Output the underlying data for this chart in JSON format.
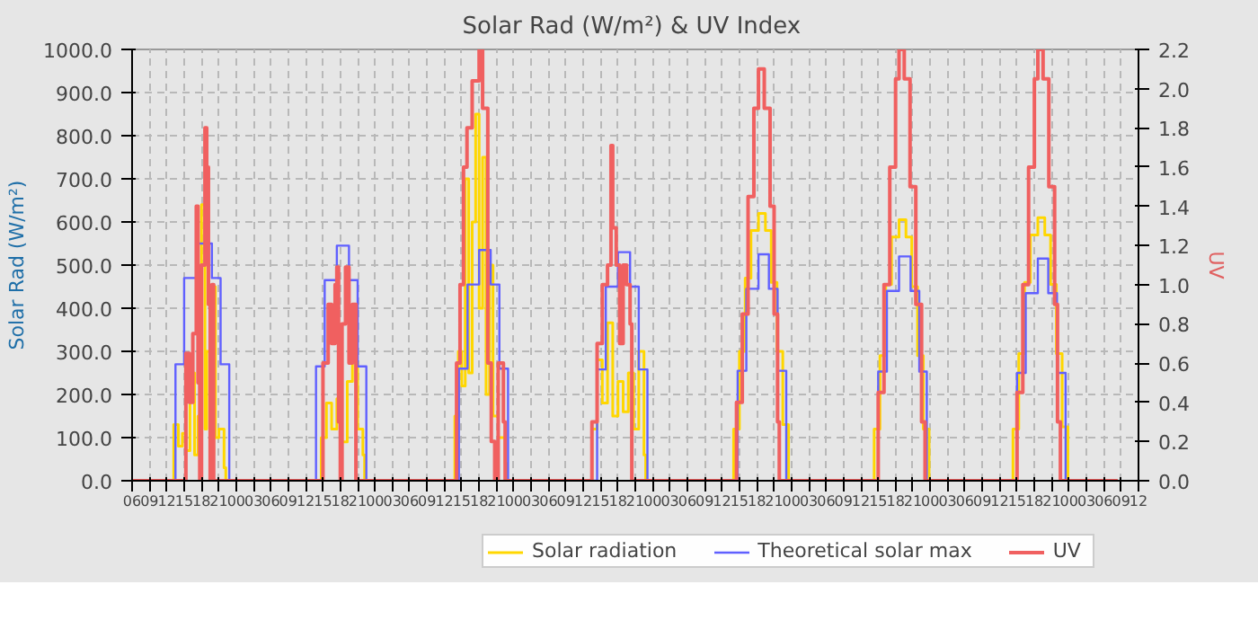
{
  "chart_data": {
    "type": "step",
    "title": "Solar Rad (W/m²) &  UV Index",
    "ylabel": "Solar Rad (W/m²)",
    "y2label": "UV",
    "xlim": [
      6,
      180
    ],
    "ylim": [
      0,
      1000
    ],
    "y2lim": [
      0,
      2.2
    ],
    "xticks": [
      {
        "value": 6,
        "label": "06"
      },
      {
        "value": 9,
        "label": "09"
      },
      {
        "value": 12,
        "label": "12"
      },
      {
        "value": 15,
        "label": "15"
      },
      {
        "value": 18,
        "label": "18"
      },
      {
        "value": 21,
        "label": "21"
      },
      {
        "value": 24,
        "label": "00"
      },
      {
        "value": 27,
        "label": "03"
      },
      {
        "value": 30,
        "label": "06"
      },
      {
        "value": 33,
        "label": "09"
      },
      {
        "value": 36,
        "label": "12"
      },
      {
        "value": 39,
        "label": "15"
      },
      {
        "value": 42,
        "label": "18"
      },
      {
        "value": 45,
        "label": "21"
      },
      {
        "value": 48,
        "label": "00"
      },
      {
        "value": 51,
        "label": "03"
      },
      {
        "value": 54,
        "label": "06"
      },
      {
        "value": 57,
        "label": "09"
      },
      {
        "value": 60,
        "label": "12"
      },
      {
        "value": 63,
        "label": "15"
      },
      {
        "value": 66,
        "label": "18"
      },
      {
        "value": 69,
        "label": "21"
      },
      {
        "value": 72,
        "label": "00"
      },
      {
        "value": 75,
        "label": "03"
      },
      {
        "value": 78,
        "label": "06"
      },
      {
        "value": 81,
        "label": "09"
      },
      {
        "value": 84,
        "label": "12"
      },
      {
        "value": 87,
        "label": "15"
      },
      {
        "value": 90,
        "label": "18"
      },
      {
        "value": 93,
        "label": "21"
      },
      {
        "value": 96,
        "label": "00"
      },
      {
        "value": 99,
        "label": "03"
      },
      {
        "value": 102,
        "label": "06"
      },
      {
        "value": 105,
        "label": "09"
      },
      {
        "value": 108,
        "label": "12"
      },
      {
        "value": 111,
        "label": "15"
      },
      {
        "value": 114,
        "label": "18"
      },
      {
        "value": 117,
        "label": "21"
      },
      {
        "value": 120,
        "label": "00"
      },
      {
        "value": 123,
        "label": "03"
      },
      {
        "value": 126,
        "label": "06"
      },
      {
        "value": 129,
        "label": "09"
      },
      {
        "value": 132,
        "label": "12"
      },
      {
        "value": 135,
        "label": "15"
      },
      {
        "value": 138,
        "label": "18"
      },
      {
        "value": 141,
        "label": "21"
      },
      {
        "value": 144,
        "label": "00"
      },
      {
        "value": 147,
        "label": "03"
      },
      {
        "value": 150,
        "label": "06"
      },
      {
        "value": 153,
        "label": "09"
      },
      {
        "value": 156,
        "label": "12"
      },
      {
        "value": 159,
        "label": "15"
      },
      {
        "value": 162,
        "label": "18"
      },
      {
        "value": 165,
        "label": "21"
      },
      {
        "value": 168,
        "label": "00"
      },
      {
        "value": 171,
        "label": "03"
      },
      {
        "value": 174,
        "label": "06"
      },
      {
        "value": 177,
        "label": "09"
      },
      {
        "value": 180,
        "label": "12"
      }
    ],
    "yticks": [
      {
        "value": 0,
        "label": "0.0"
      },
      {
        "value": 100,
        "label": "100.0"
      },
      {
        "value": 200,
        "label": "200.0"
      },
      {
        "value": 300,
        "label": "300.0"
      },
      {
        "value": 400,
        "label": "400.0"
      },
      {
        "value": 500,
        "label": "500.0"
      },
      {
        "value": 600,
        "label": "600.0"
      },
      {
        "value": 700,
        "label": "700.0"
      },
      {
        "value": 800,
        "label": "800.0"
      },
      {
        "value": 900,
        "label": "900.0"
      },
      {
        "value": 1000,
        "label": "1000.0"
      }
    ],
    "y2ticks": [
      {
        "value": 0,
        "label": "0.0"
      },
      {
        "value": 0.2,
        "label": "0.2"
      },
      {
        "value": 0.4,
        "label": "0.4"
      },
      {
        "value": 0.6,
        "label": "0.6"
      },
      {
        "value": 0.8,
        "label": "0.8"
      },
      {
        "value": 1.0,
        "label": "1.0"
      },
      {
        "value": 1.2,
        "label": "1.2"
      },
      {
        "value": 1.4,
        "label": "1.4"
      },
      {
        "value": 1.6,
        "label": "1.6"
      },
      {
        "value": 1.8,
        "label": "1.8"
      },
      {
        "value": 2.0,
        "label": "2.0"
      },
      {
        "value": 2.2,
        "label": "2.2"
      }
    ],
    "grid": true,
    "legend": "bottom",
    "series": [
      {
        "name": "Solar radiation",
        "color": "#ffd700",
        "x": [
          6,
          12.6,
          13.2,
          14,
          14.7,
          15.3,
          16,
          16.8,
          17.4,
          18,
          18.6,
          18.9,
          19.5,
          20.1,
          20.4,
          21,
          21.9,
          22.2,
          38.1,
          38.7,
          39.6,
          40.5,
          41.4,
          42.3,
          43.2,
          44.1,
          45,
          45.9,
          46.2,
          61.2,
          61.8,
          62.4,
          63,
          63.6,
          64.2,
          64.8,
          65.4,
          66,
          66.6,
          67.2,
          67.8,
          68.4,
          69.3,
          70.5,
          70.8,
          84.6,
          85.5,
          86.4,
          87.3,
          88.2,
          89.1,
          90,
          90.9,
          91.8,
          92.7,
          93.6,
          94.5,
          94.8,
          109,
          110,
          111,
          112,
          113,
          114.3,
          115.5,
          116.5,
          117.5,
          118.5,
          119.5,
          133.3,
          134.3,
          135.3,
          136.3,
          137.3,
          138.6,
          139.8,
          140.8,
          141.8,
          142.8,
          143.8,
          157.3,
          158.3,
          159.3,
          160.3,
          161.3,
          162.6,
          163.8,
          164.8,
          165.8,
          166.8,
          167.8,
          176.4
        ],
        "values": [
          0,
          0,
          130,
          80,
          110,
          70,
          250,
          60,
          150,
          640,
          120,
          300,
          60,
          450,
          100,
          120,
          30,
          0,
          0,
          100,
          180,
          120,
          190,
          90,
          230,
          275,
          120,
          60,
          0,
          0,
          150,
          300,
          220,
          700,
          250,
          600,
          850,
          400,
          750,
          200,
          500,
          150,
          100,
          40,
          0,
          0,
          120,
          280,
          180,
          366,
          150,
          230,
          160,
          250,
          120,
          300,
          60,
          0,
          0,
          120,
          300,
          470,
          580,
          620,
          580,
          460,
          300,
          130,
          0,
          0,
          120,
          290,
          455,
          565,
          605,
          565,
          450,
          290,
          120,
          0,
          0,
          120,
          295,
          460,
          570,
          610,
          570,
          455,
          295,
          125,
          0,
          0
        ]
      },
      {
        "name": "Theoretical solar max",
        "color": "#6060ff",
        "x": [
          6,
          12.0,
          13.5,
          15.0,
          17.4,
          19.8,
          21.3,
          22.8,
          36.3,
          37.8,
          39.3,
          41.4,
          43.5,
          45.0,
          46.5,
          61,
          62.5,
          64,
          66,
          68,
          69.5,
          71,
          84.9,
          86.4,
          87.9,
          90,
          92.1,
          93.6,
          95.1,
          109.2,
          110.7,
          112.2,
          114.3,
          116.1,
          117.6,
          119.1,
          133.5,
          135,
          136.5,
          138.6,
          140.6,
          142.1,
          143.4,
          157.5,
          159,
          160.5,
          162.6,
          164.4,
          165.9,
          167.4,
          176.4
        ],
        "values": [
          0,
          0,
          270,
          470,
          550,
          470,
          270,
          0,
          0,
          265,
          465,
          545,
          465,
          265,
          0,
          0,
          260,
          455,
          535,
          455,
          260,
          0,
          0,
          258,
          450,
          530,
          450,
          258,
          0,
          0,
          255,
          445,
          525,
          445,
          255,
          0,
          0,
          253,
          440,
          520,
          440,
          253,
          0,
          0,
          250,
          435,
          515,
          435,
          250,
          0,
          0
        ]
      },
      {
        "name": "UV",
        "color": "#f06060",
        "axis": "y2",
        "x": [
          6,
          15.0,
          15.3,
          15.9,
          16.5,
          17.1,
          17.4,
          17.7,
          18.0,
          18.6,
          18.9,
          19.2,
          19.5,
          19.8,
          20.1,
          38.7,
          39.0,
          39.9,
          40.5,
          41.1,
          41.4,
          41.7,
          42.0,
          42.3,
          42.9,
          43.5,
          44.1,
          44.7,
          61.8,
          62.1,
          62.7,
          63.3,
          63.9,
          64.8,
          66,
          66.6,
          67.5,
          68.1,
          68.7,
          69.3,
          70.2,
          70.5,
          84.9,
          85.5,
          86.4,
          87.3,
          88.2,
          88.8,
          89.1,
          89.7,
          90.3,
          90.9,
          91.5,
          92.1,
          92.4,
          109.5,
          110.5,
          111.5,
          112.5,
          113.5,
          114.3,
          115.3,
          116.3,
          117.0,
          117.6,
          117.9,
          134.1,
          135,
          136,
          137,
          138,
          138.6,
          139.5,
          140.5,
          141.5,
          142.5,
          143.1,
          158.1,
          159,
          160,
          161,
          162,
          162.6,
          163.5,
          164.5,
          165.5,
          166,
          166.5,
          176.4
        ],
        "values": [
          0,
          0,
          0.65,
          0.4,
          0.75,
          1.4,
          0.5,
          0,
          1.1,
          1.8,
          1.6,
          0.9,
          0,
          1.0,
          0,
          0,
          0.6,
          0.9,
          0.7,
          1.0,
          1.09,
          0.3,
          0,
          0.8,
          1.09,
          0.6,
          0.9,
          0,
          0,
          0.6,
          1.0,
          1.6,
          1.8,
          2.04,
          2.2,
          1.9,
          0.6,
          0.2,
          0,
          0.6,
          0.3,
          0,
          0,
          0.3,
          0.7,
          1.0,
          1.1,
          1.71,
          1.29,
          1.1,
          0.7,
          1.1,
          1.0,
          0.8,
          0,
          0,
          0.4,
          0.85,
          1.45,
          1.9,
          2.1,
          1.9,
          1.4,
          0.85,
          0.3,
          0,
          0,
          0.45,
          1.0,
          1.6,
          2.05,
          2.2,
          2.05,
          1.5,
          0.9,
          0.3,
          0,
          0,
          0.45,
          1.0,
          1.6,
          2.05,
          2.2,
          2.05,
          1.5,
          0.9,
          0.3,
          0,
          0
        ]
      }
    ]
  }
}
